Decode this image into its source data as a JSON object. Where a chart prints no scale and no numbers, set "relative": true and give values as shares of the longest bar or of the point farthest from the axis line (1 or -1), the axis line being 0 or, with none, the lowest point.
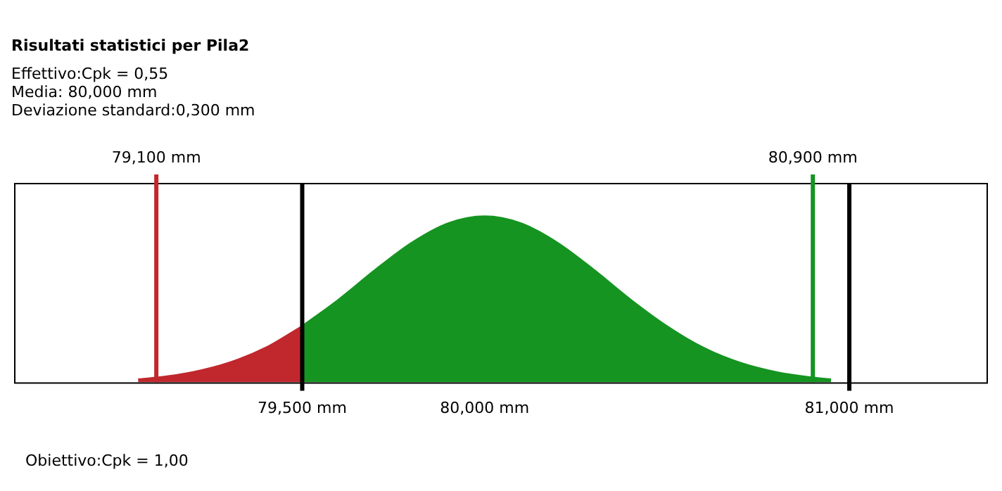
{
  "chart_data": {
    "type": "area",
    "title": "Risultati statistici per Pila2",
    "subtitle": "Effettivo:Cpk = 0,55\nMedia: 80,000 mm\nDeviazione standard:0,300 mm",
    "annotations": [
      "Obiettivo:Cpk = 1,00"
    ],
    "relative": true,
    "tick_labels": "x",
    "legend": false,
    "grid": false,
    "xlim": [
      78.71,
      81.38
    ],
    "xticks": [
      {
        "value": 79.5,
        "label": "79,500 mm"
      },
      {
        "value": 80,
        "label": "80,000 mm"
      },
      {
        "value": 81,
        "label": "81,000 mm"
      }
    ],
    "series": [
      {
        "color": "#c0282d",
        "x": [
          79.05,
          79.1,
          79.2,
          79.3,
          79.4,
          79.5
        ],
        "values": [
          0.02,
          0.03,
          0.063,
          0.12,
          0.21,
          0.34
        ]
      },
      {
        "color": "#159421",
        "x": [
          79.5,
          79.6,
          79.7,
          79.8,
          79.9,
          80,
          80.1,
          80.2,
          80.3,
          80.4,
          80.5,
          80.6,
          80.7,
          80.8,
          80.9,
          80.95
        ],
        "values": [
          0.34,
          0.5,
          0.678,
          0.841,
          0.958,
          1,
          0.958,
          0.841,
          0.678,
          0.5,
          0.34,
          0.21,
          0.12,
          0.063,
          0.03,
          0.02
        ]
      }
    ],
    "ref_lines": [
      {
        "axis": "x",
        "value": 79.1,
        "label": "79,100 mm",
        "color": "#c0282d"
      },
      {
        "axis": "x",
        "value": 80.9,
        "label": "80,900 mm",
        "color": "#159421"
      },
      {
        "axis": "x",
        "value": 79.5,
        "label": null,
        "color": "#000000"
      },
      {
        "axis": "x",
        "value": 81,
        "label": null,
        "color": "#000000"
      }
    ]
  }
}
